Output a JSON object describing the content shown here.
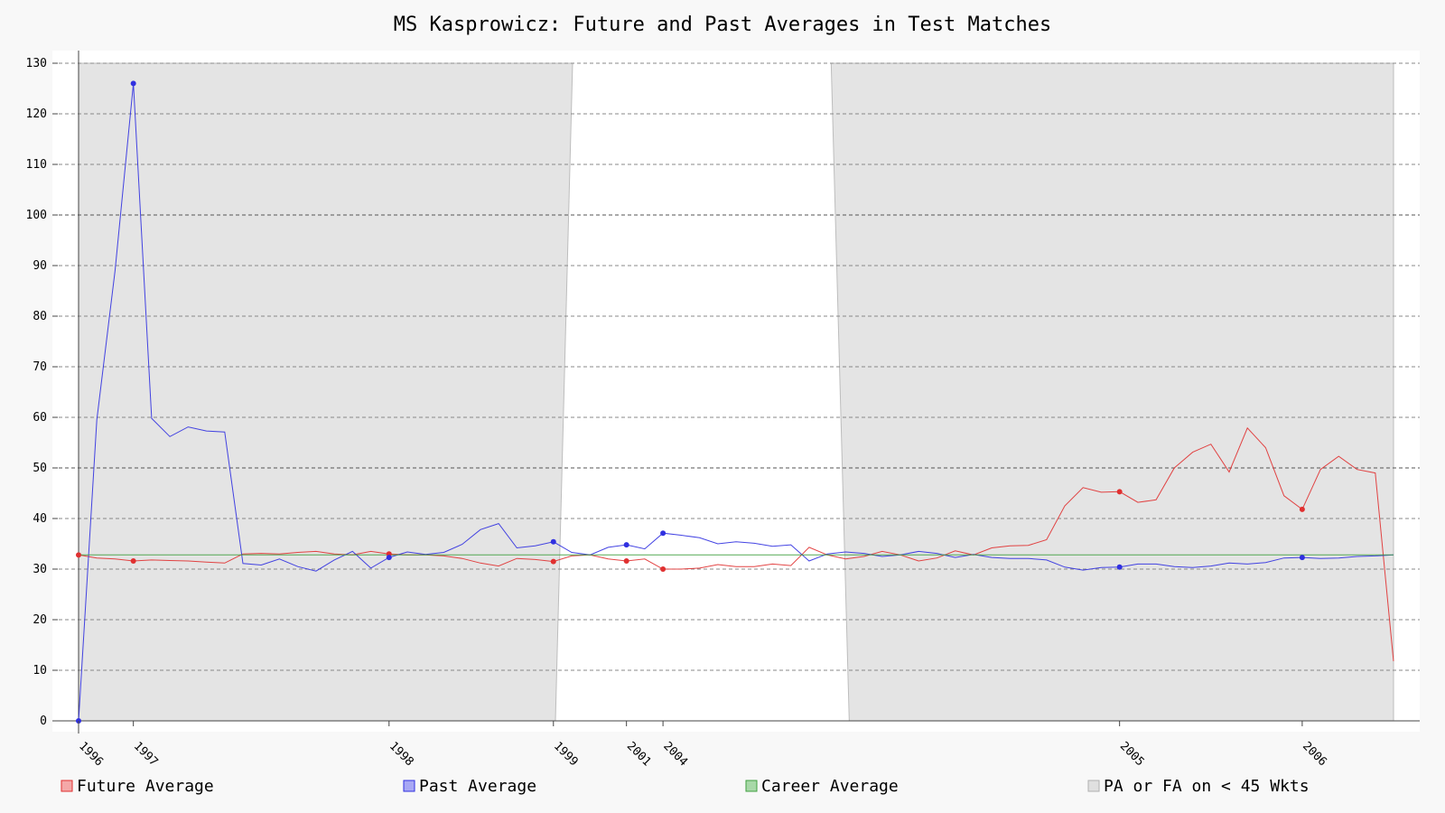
{
  "chart_data": {
    "type": "line",
    "title": "MS Kasprowicz: Future and Past Averages in Test Matches",
    "xlabel": "",
    "ylabel": "",
    "ylim": [
      0,
      130
    ],
    "yticks": [
      0,
      10,
      20,
      30,
      40,
      50,
      60,
      70,
      80,
      90,
      100,
      110,
      120,
      130
    ],
    "grid": true,
    "legend_position": "bottom",
    "n_points": 73,
    "x_tick_labels": [
      {
        "index": 0,
        "label": "1996"
      },
      {
        "index": 3,
        "label": "1997"
      },
      {
        "index": 17,
        "label": "1998"
      },
      {
        "index": 26,
        "label": "1999"
      },
      {
        "index": 30,
        "label": "2001"
      },
      {
        "index": 32,
        "label": "2004"
      },
      {
        "index": 57,
        "label": "2005"
      },
      {
        "index": 67,
        "label": "2006"
      }
    ],
    "marker_indices": [
      0,
      3,
      17,
      26,
      30,
      32,
      57,
      67
    ],
    "shaded_regions": [
      {
        "from": 0,
        "to": 27
      },
      {
        "from": 42,
        "to": 72
      }
    ],
    "series": [
      {
        "name": "Future Average",
        "color": "#e03030",
        "values": [
          32.8,
          32.2,
          32.0,
          31.6,
          31.8,
          31.7,
          31.6,
          31.4,
          31.2,
          33.0,
          33.1,
          33.0,
          33.3,
          33.5,
          33.0,
          32.8,
          33.5,
          33.0,
          32.8,
          32.8,
          32.6,
          32.1,
          31.2,
          30.6,
          32.1,
          31.9,
          31.5,
          32.6,
          32.8,
          32.0,
          31.6,
          32.0,
          30.0,
          30.0,
          30.2,
          30.9,
          30.5,
          30.5,
          31.0,
          30.7,
          34.3,
          32.8,
          32.0,
          32.5,
          33.5,
          32.8,
          31.6,
          32.2,
          33.6,
          32.8,
          34.2,
          34.6,
          34.7,
          35.8,
          42.5,
          46.1,
          45.2,
          45.3,
          43.2,
          43.7,
          50.0,
          53.1,
          54.7,
          49.2,
          57.9,
          54.0,
          44.5,
          41.8,
          49.7,
          52.3,
          49.7,
          49.0,
          11.8
        ]
      },
      {
        "name": "Past Average",
        "color": "#3030e0",
        "values": [
          0.0,
          59.5,
          89.0,
          126.0,
          59.8,
          56.2,
          58.1,
          57.3,
          57.1,
          31.1,
          30.8,
          32.0,
          30.5,
          29.6,
          31.8,
          33.5,
          30.2,
          32.3,
          33.4,
          32.9,
          33.3,
          34.9,
          37.8,
          39.0,
          34.2,
          34.6,
          35.4,
          33.3,
          32.8,
          34.3,
          34.8,
          34.0,
          37.1,
          36.7,
          36.2,
          35.0,
          35.4,
          35.1,
          34.5,
          34.8,
          31.6,
          33.0,
          33.4,
          33.1,
          32.5,
          32.8,
          33.5,
          33.1,
          32.3,
          32.9,
          32.3,
          32.1,
          32.1,
          31.8,
          30.4,
          29.8,
          30.3,
          30.4,
          31.0,
          31.0,
          30.5,
          30.3,
          30.6,
          31.2,
          31.0,
          31.3,
          32.2,
          32.3,
          32.1,
          32.2,
          32.5,
          32.6,
          32.8
        ]
      },
      {
        "name": "Career Average",
        "color": "#40a040",
        "values": [
          32.8,
          32.8
        ]
      }
    ],
    "legend": [
      {
        "label": "Future Average",
        "fill": "#f4a8a8",
        "stroke": "#e03030"
      },
      {
        "label": "Past Average",
        "fill": "#a8a8f4",
        "stroke": "#3030e0"
      },
      {
        "label": "Career Average",
        "fill": "#a8d8a8",
        "stroke": "#40a040"
      },
      {
        "label": "PA or FA on < 45 Wkts",
        "fill": "#e0e0e0",
        "stroke": "#b0b0b0"
      }
    ]
  }
}
